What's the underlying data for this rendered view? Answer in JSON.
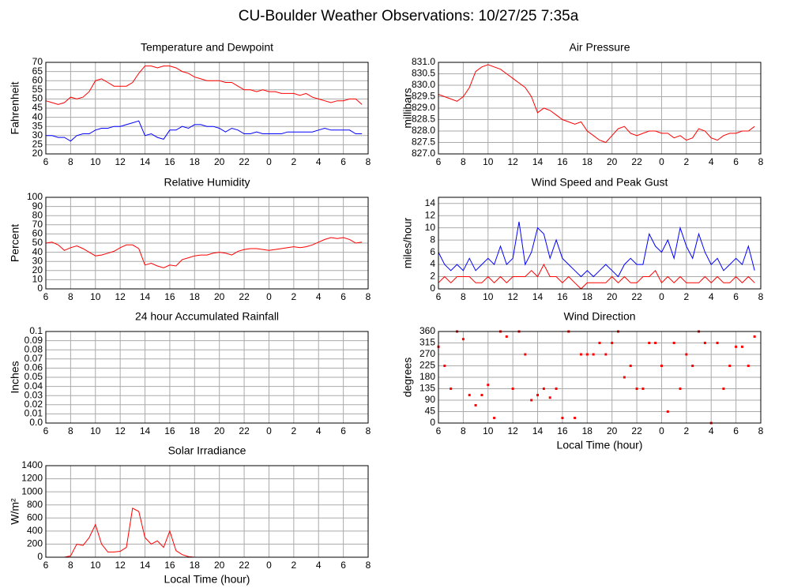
{
  "title": "CU-Boulder Weather Observations: 10/27/25 7:35a",
  "chart_data": [
    {
      "type": "line",
      "title": "Temperature and Dewpoint",
      "ylabel": "Fahrenheit",
      "x": [
        6,
        6.5,
        7,
        7.5,
        8,
        8.5,
        9,
        9.5,
        10,
        10.5,
        11,
        11.5,
        12,
        12.5,
        13,
        13.5,
        14,
        14.5,
        15,
        15.5,
        16,
        16.5,
        17,
        17.5,
        18,
        18.5,
        19,
        19.5,
        20,
        20.5,
        21,
        21.5,
        22,
        22.5,
        23,
        23.5,
        24,
        24.5,
        25,
        25.5,
        26,
        26.5,
        27,
        27.5,
        28,
        28.5,
        29,
        29.5,
        30,
        30.5,
        31,
        31.5
      ],
      "series": [
        {
          "color": "#ff0000",
          "values": [
            49,
            48,
            47,
            48,
            51,
            50,
            51,
            54,
            60,
            61,
            59,
            57,
            57,
            57,
            59,
            64,
            68,
            68,
            67,
            68,
            68,
            67,
            65,
            64,
            62,
            61,
            60,
            60,
            60,
            59,
            59,
            57,
            55,
            55,
            54,
            55,
            54,
            54,
            53,
            53,
            53,
            52,
            53,
            51,
            50,
            49,
            48,
            49,
            49,
            50,
            50,
            47
          ]
        },
        {
          "color": "#0000ff",
          "values": [
            30,
            30,
            29,
            29,
            27,
            30,
            31,
            31,
            33,
            34,
            34,
            35,
            35,
            36,
            37,
            38,
            30,
            31,
            29,
            28,
            33,
            33,
            35,
            34,
            36,
            36,
            35,
            35,
            34,
            32,
            34,
            33,
            31,
            31,
            32,
            31,
            31,
            31,
            31,
            32,
            32,
            32,
            32,
            32,
            33,
            34,
            33,
            33,
            33,
            33,
            31,
            31
          ]
        }
      ],
      "xlim": [
        6,
        32
      ],
      "xticks": [
        6,
        8,
        10,
        12,
        14,
        16,
        18,
        20,
        22,
        {
          "value": 24,
          "label": "0"
        },
        {
          "value": 26,
          "label": "2"
        },
        {
          "value": 28,
          "label": "4"
        },
        {
          "value": 30,
          "label": "6"
        },
        {
          "value": 32,
          "label": "8"
        }
      ],
      "ylim": [
        20,
        70
      ],
      "yticks": [
        20,
        25,
        30,
        35,
        40,
        45,
        50,
        55,
        60,
        65,
        70
      ],
      "grid": true
    },
    {
      "type": "line",
      "title": "Air Pressure",
      "ylabel": "millibars",
      "x": [
        6,
        6.5,
        7,
        7.5,
        8,
        8.5,
        9,
        9.5,
        10,
        10.5,
        11,
        11.5,
        12,
        12.5,
        13,
        13.5,
        14,
        14.5,
        15,
        15.5,
        16,
        16.5,
        17,
        17.5,
        18,
        18.5,
        19,
        19.5,
        20,
        20.5,
        21,
        21.5,
        22,
        22.5,
        23,
        23.5,
        24,
        24.5,
        25,
        25.5,
        26,
        26.5,
        27,
        27.5,
        28,
        28.5,
        29,
        29.5,
        30,
        30.5,
        31,
        31.5
      ],
      "series": [
        {
          "color": "#ff0000",
          "values": [
            829.6,
            829.5,
            829.4,
            829.3,
            829.5,
            829.9,
            830.6,
            830.8,
            830.9,
            830.8,
            830.7,
            830.5,
            830.3,
            830.1,
            829.9,
            829.5,
            828.8,
            829.0,
            828.9,
            828.7,
            828.5,
            828.4,
            828.3,
            828.4,
            828.0,
            827.8,
            827.6,
            827.5,
            827.8,
            828.1,
            828.2,
            827.9,
            827.8,
            827.9,
            828.0,
            828.0,
            827.9,
            827.9,
            827.7,
            827.8,
            827.6,
            827.7,
            828.1,
            828.0,
            827.7,
            827.6,
            827.8,
            827.9,
            827.9,
            828.0,
            828.0,
            828.2
          ]
        }
      ],
      "xlim": [
        6,
        32
      ],
      "xticks": [
        6,
        8,
        10,
        12,
        14,
        16,
        18,
        20,
        22,
        {
          "value": 24,
          "label": "0"
        },
        {
          "value": 26,
          "label": "2"
        },
        {
          "value": 28,
          "label": "4"
        },
        {
          "value": 30,
          "label": "6"
        },
        {
          "value": 32,
          "label": "8"
        }
      ],
      "ylim": [
        827,
        831
      ],
      "yticks": [
        {
          "value": 827,
          "label": "827.0"
        },
        827.5,
        {
          "value": 828,
          "label": "828.0"
        },
        828.5,
        {
          "value": 829,
          "label": "829.0"
        },
        829.5,
        {
          "value": 830,
          "label": "830.0"
        },
        830.5,
        {
          "value": 831,
          "label": "831.0"
        }
      ],
      "grid": true
    },
    {
      "type": "line",
      "title": "Relative Humidity",
      "ylabel": "Percent",
      "x": [
        6,
        6.5,
        7,
        7.5,
        8,
        8.5,
        9,
        9.5,
        10,
        10.5,
        11,
        11.5,
        12,
        12.5,
        13,
        13.5,
        14,
        14.5,
        15,
        15.5,
        16,
        16.5,
        17,
        17.5,
        18,
        18.5,
        19,
        19.5,
        20,
        20.5,
        21,
        21.5,
        22,
        22.5,
        23,
        23.5,
        24,
        24.5,
        25,
        25.5,
        26,
        26.5,
        27,
        27.5,
        28,
        28.5,
        29,
        29.5,
        30,
        30.5,
        31,
        31.5
      ],
      "series": [
        {
          "color": "#ff0000",
          "values": [
            50,
            51,
            48,
            42,
            45,
            47,
            44,
            40,
            36,
            37,
            39,
            41,
            45,
            48,
            48,
            44,
            26,
            28,
            25,
            23,
            26,
            25,
            32,
            34,
            36,
            37,
            37,
            39,
            40,
            39,
            37,
            41,
            43,
            44,
            44,
            43,
            42,
            43,
            44,
            45,
            46,
            45,
            46,
            48,
            51,
            54,
            56,
            55,
            56,
            54,
            50,
            51
          ]
        }
      ],
      "xlim": [
        6,
        32
      ],
      "xticks": [
        6,
        8,
        10,
        12,
        14,
        16,
        18,
        20,
        22,
        {
          "value": 24,
          "label": "0"
        },
        {
          "value": 26,
          "label": "2"
        },
        {
          "value": 28,
          "label": "4"
        },
        {
          "value": 30,
          "label": "6"
        },
        {
          "value": 32,
          "label": "8"
        }
      ],
      "ylim": [
        0,
        100
      ],
      "yticks": [
        0,
        10,
        20,
        30,
        40,
        50,
        60,
        70,
        80,
        90,
        100
      ],
      "grid": true
    },
    {
      "type": "line",
      "title": "Wind Speed and Peak Gust",
      "ylabel": "miles/hour",
      "x": [
        6,
        6.5,
        7,
        7.5,
        8,
        8.5,
        9,
        9.5,
        10,
        10.5,
        11,
        11.5,
        12,
        12.5,
        13,
        13.5,
        14,
        14.5,
        15,
        15.5,
        16,
        16.5,
        17,
        17.5,
        18,
        18.5,
        19,
        19.5,
        20,
        20.5,
        21,
        21.5,
        22,
        22.5,
        23,
        23.5,
        24,
        24.5,
        25,
        25.5,
        26,
        26.5,
        27,
        27.5,
        28,
        28.5,
        29,
        29.5,
        30,
        30.5,
        31,
        31.5
      ],
      "series": [
        {
          "color": "#0000ff",
          "values": [
            6,
            4,
            3,
            4,
            3,
            5,
            3,
            4,
            5,
            4,
            7,
            4,
            5,
            11,
            4,
            6,
            10,
            9,
            5,
            8,
            5,
            4,
            3,
            2,
            3,
            2,
            3,
            4,
            3,
            2,
            4,
            5,
            4,
            4,
            9,
            7,
            6,
            8,
            5,
            10,
            7,
            5,
            9,
            6,
            4,
            5,
            3,
            4,
            5,
            4,
            7,
            3
          ]
        },
        {
          "color": "#ff0000",
          "values": [
            1,
            2,
            1,
            2,
            2,
            2,
            1,
            1,
            2,
            1,
            2,
            1,
            2,
            2,
            2,
            3,
            2,
            4,
            2,
            2,
            1,
            2,
            1,
            0,
            1,
            1,
            1,
            1,
            2,
            1,
            2,
            1,
            1,
            2,
            2,
            3,
            1,
            2,
            1,
            2,
            1,
            1,
            1,
            2,
            1,
            2,
            1,
            1,
            2,
            1,
            2,
            1
          ]
        }
      ],
      "xlim": [
        6,
        32
      ],
      "xticks": [
        6,
        8,
        10,
        12,
        14,
        16,
        18,
        20,
        22,
        {
          "value": 24,
          "label": "0"
        },
        {
          "value": 26,
          "label": "2"
        },
        {
          "value": 28,
          "label": "4"
        },
        {
          "value": 30,
          "label": "6"
        },
        {
          "value": 32,
          "label": "8"
        }
      ],
      "ylim": [
        0,
        15
      ],
      "yticks": [
        0,
        2,
        4,
        6,
        8,
        10,
        12,
        14
      ],
      "grid": true
    },
    {
      "type": "line",
      "title": "24 hour Accumulated Rainfall",
      "ylabel": "Inches",
      "x": [
        6,
        6.5,
        7,
        7.5,
        8,
        8.5,
        9,
        9.5,
        10,
        10.5,
        11,
        11.5,
        12,
        12.5,
        13,
        13.5,
        14,
        14.5,
        15,
        15.5,
        16,
        16.5,
        17,
        17.5,
        18,
        18.5,
        19,
        19.5,
        20,
        20.5,
        21,
        21.5,
        22,
        22.5,
        23,
        23.5,
        24,
        24.5,
        25,
        25.5,
        26,
        26.5,
        27,
        27.5,
        28,
        28.5,
        29,
        29.5,
        30,
        30.5,
        31,
        31.5
      ],
      "series": [
        {
          "color": "#ff0000",
          "values": [
            0,
            0,
            0,
            0,
            0,
            0,
            0,
            0,
            0,
            0,
            0,
            0,
            0,
            0,
            0,
            0,
            0,
            0,
            0,
            0,
            0,
            0,
            0,
            0,
            0,
            0,
            0,
            0,
            0,
            0,
            0,
            0,
            0,
            0,
            0,
            0,
            0,
            0,
            0,
            0,
            0,
            0,
            0,
            0,
            0,
            0,
            0,
            0,
            0,
            0,
            0,
            0
          ]
        }
      ],
      "xlim": [
        6,
        32
      ],
      "xticks": [
        6,
        8,
        10,
        12,
        14,
        16,
        18,
        20,
        22,
        {
          "value": 24,
          "label": "0"
        },
        {
          "value": 26,
          "label": "2"
        },
        {
          "value": 28,
          "label": "4"
        },
        {
          "value": 30,
          "label": "6"
        },
        {
          "value": 32,
          "label": "8"
        }
      ],
      "ylim": [
        0,
        0.1
      ],
      "yticks": [
        {
          "value": 0,
          "label": "0.0"
        },
        0.01,
        0.02,
        0.03,
        0.04,
        0.05,
        0.06,
        0.07,
        0.08,
        0.09,
        0.1
      ],
      "grid": true
    },
    {
      "type": "scatter",
      "title": "Wind Direction",
      "ylabel": "degrees",
      "xlabel": "Local Time (hour)",
      "x": [
        6,
        6.5,
        7,
        7.5,
        8,
        8.5,
        9,
        9.5,
        10,
        10.5,
        11,
        11.5,
        12,
        12.5,
        13,
        13.5,
        14,
        14.5,
        15,
        15.5,
        16,
        16.5,
        17,
        17.5,
        18,
        18.5,
        19,
        19.5,
        20,
        20.5,
        21,
        21.5,
        22,
        22.5,
        23,
        23.5,
        24,
        24.5,
        25,
        25.5,
        26,
        26.5,
        27,
        27.5,
        28,
        28.5,
        29,
        29.5,
        30,
        30.5,
        31,
        31.5
      ],
      "series": [
        {
          "color": "#ff0000",
          "values": [
            300,
            225,
            135,
            360,
            330,
            110,
            70,
            110,
            150,
            20,
            360,
            340,
            135,
            360,
            270,
            90,
            110,
            135,
            100,
            135,
            20,
            360,
            20,
            270,
            270,
            270,
            315,
            270,
            315,
            360,
            180,
            225,
            135,
            135,
            315,
            315,
            225,
            45,
            315,
            135,
            270,
            225,
            360,
            315,
            0,
            315,
            135,
            225,
            300,
            300,
            225,
            340
          ]
        }
      ],
      "xlim": [
        6,
        32
      ],
      "xticks": [
        6,
        8,
        10,
        12,
        14,
        16,
        18,
        20,
        22,
        {
          "value": 24,
          "label": "0"
        },
        {
          "value": 26,
          "label": "2"
        },
        {
          "value": 28,
          "label": "4"
        },
        {
          "value": 30,
          "label": "6"
        },
        {
          "value": 32,
          "label": "8"
        }
      ],
      "ylim": [
        0,
        360
      ],
      "yticks": [
        0,
        45,
        90,
        135,
        180,
        225,
        270,
        315,
        360
      ],
      "grid": true
    },
    {
      "type": "line",
      "title": "Solar Irradiance",
      "ylabel": "W/m²",
      "xlabel": "Local Time (hour)",
      "x": [
        6,
        6.5,
        7,
        7.5,
        8,
        8.5,
        9,
        9.5,
        10,
        10.5,
        11,
        11.5,
        12,
        12.5,
        13,
        13.5,
        14,
        14.5,
        15,
        15.5,
        16,
        16.5,
        17,
        17.5,
        18,
        18.5,
        19,
        19.5,
        20,
        20.5,
        21,
        21.5,
        22,
        22.5,
        23,
        23.5,
        24,
        24.5,
        25,
        25.5,
        26,
        26.5,
        27,
        27.5,
        28,
        28.5,
        29,
        29.5,
        30,
        30.5,
        31,
        31.5
      ],
      "series": [
        {
          "color": "#ff0000",
          "values": [
            0,
            0,
            0,
            0,
            20,
            200,
            180,
            300,
            500,
            200,
            80,
            80,
            90,
            150,
            750,
            700,
            300,
            200,
            250,
            150,
            400,
            100,
            40,
            10,
            0,
            0,
            0,
            0,
            0,
            0,
            0,
            0,
            0,
            0,
            0,
            0,
            0,
            0,
            0,
            0,
            0,
            0,
            0,
            0,
            0,
            0,
            0,
            0,
            0,
            0,
            0,
            0
          ]
        }
      ],
      "xlim": [
        6,
        32
      ],
      "xticks": [
        6,
        8,
        10,
        12,
        14,
        16,
        18,
        20,
        22,
        {
          "value": 24,
          "label": "0"
        },
        {
          "value": 26,
          "label": "2"
        },
        {
          "value": 28,
          "label": "4"
        },
        {
          "value": 30,
          "label": "6"
        },
        {
          "value": 32,
          "label": "8"
        }
      ],
      "ylim": [
        0,
        1400
      ],
      "yticks": [
        0,
        200,
        400,
        600,
        800,
        1000,
        1200,
        1400
      ],
      "grid": true
    }
  ]
}
